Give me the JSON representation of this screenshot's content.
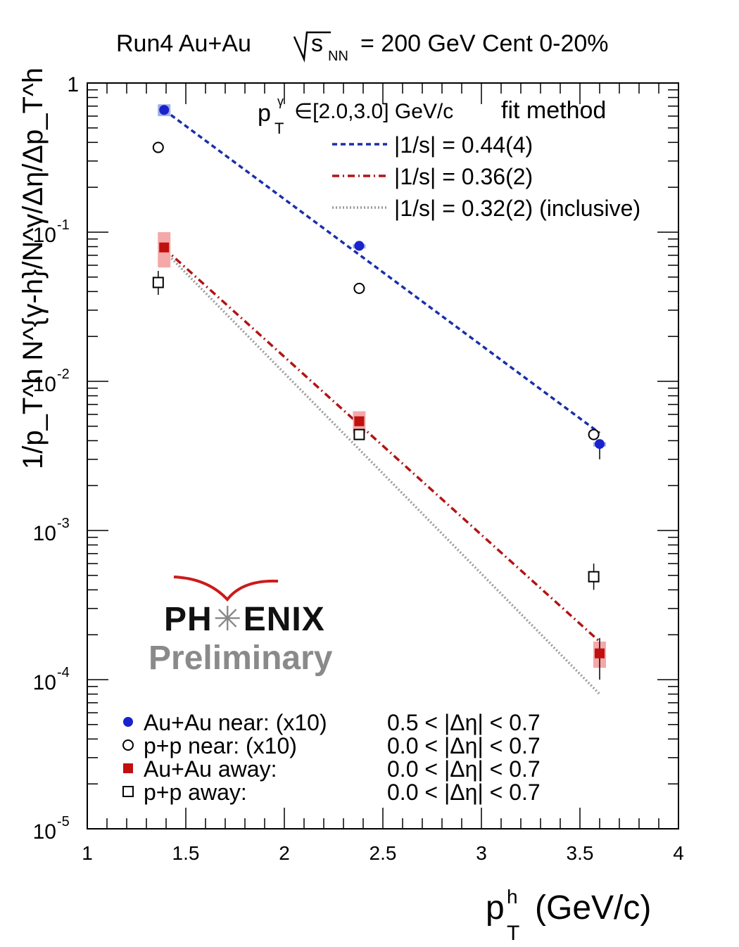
{
  "header": {
    "title_prefix": "Run4 Au+Au",
    "sqrt_s": "s",
    "sqrt_sub": "NN",
    "title_suffix": "= 200 GeV Cent 0-20%"
  },
  "logo": {
    "line1_a": "PH",
    "line1_sun": "✳",
    "line1_b": "ENIX",
    "line2": "Preliminary"
  },
  "chart_data": {
    "type": "scatter",
    "xlim": [
      1,
      4
    ],
    "ylim": [
      1e-05,
      1
    ],
    "yscale": "log",
    "xlabel": "p",
    "xlabel_sup": "h",
    "xlabel_sub": "T",
    "xlabel_unit": "(GeV/c)",
    "ylabel": "1/p_T^h N^{γ-h}/N^γ/Δη/Δp_T^h",
    "x_ticks": [
      1,
      1.5,
      2,
      2.5,
      3,
      3.5,
      4
    ],
    "x_tick_labels": [
      "1",
      "1.5",
      "2",
      "2.5",
      "3",
      "3.5",
      "4"
    ],
    "y_ticks": [
      1,
      0.1,
      0.01,
      0.001,
      0.0001,
      1e-05
    ],
    "y_tick_labels": [
      {
        "base": "1",
        "exp": ""
      },
      {
        "base": "10",
        "exp": "-1"
      },
      {
        "base": "10",
        "exp": "-2"
      },
      {
        "base": "10",
        "exp": "-3"
      },
      {
        "base": "10",
        "exp": "-4"
      },
      {
        "base": "10",
        "exp": "-5"
      }
    ],
    "annotation": {
      "label": "p",
      "sup": "γ",
      "sub": "T",
      "range": "∈[2.0,3.0] GeV/c",
      "method": "fit method"
    },
    "fits": [
      {
        "name": "|1/s| = 0.44(4)",
        "color": "#1a2fa8",
        "style": "dashed",
        "x": [
          1.39,
          3.6
        ],
        "y": [
          0.66,
          0.0045
        ]
      },
      {
        "name": "|1/s| = 0.36(2)",
        "color": "#b01515",
        "style": "dashdot",
        "x": [
          1.39,
          3.6
        ],
        "y": [
          0.078,
          0.00018
        ]
      },
      {
        "name": "|1/s| = 0.32(2) (inclusive)",
        "color": "#9a9a9a",
        "style": "dotted",
        "x": [
          1.39,
          3.6
        ],
        "y": [
          0.075,
          8e-05
        ]
      }
    ],
    "series": [
      {
        "name": "Au+Au near: (x10)",
        "cut": "0.5 < |Δη| < 0.7",
        "marker": "filled-circle",
        "color": "#1a22cc",
        "x": [
          1.39,
          2.38,
          3.6
        ],
        "y": [
          0.66,
          0.081,
          0.0038
        ],
        "sys_lo": [
          0.6,
          0.079,
          0.0037
        ],
        "sys_hi": [
          0.72,
          0.083,
          0.0039
        ],
        "err_lo": [
          0.66,
          0.081,
          0.003
        ],
        "err_hi": [
          0.66,
          0.081,
          0.0038
        ]
      },
      {
        "name": "p+p near: (x10)",
        "cut": "0.0 < |Δη| < 0.7",
        "marker": "open-circle",
        "color": "#000000",
        "x": [
          1.36,
          2.38,
          3.57
        ],
        "y": [
          0.37,
          0.042,
          0.0044
        ],
        "err_lo": [
          0.37,
          0.042,
          0.0044
        ],
        "err_hi": [
          0.37,
          0.042,
          0.0044
        ]
      },
      {
        "name": "Au+Au away:",
        "cut": "0.0 < |Δη| < 0.7",
        "marker": "filled-square",
        "color": "#c01010",
        "x": [
          1.39,
          2.38,
          3.6
        ],
        "y": [
          0.079,
          0.0054,
          0.00015
        ],
        "sys_lo": [
          0.058,
          0.0045,
          0.00012
        ],
        "sys_hi": [
          0.1,
          0.0063,
          0.00018
        ],
        "err_lo": [
          0.079,
          0.0054,
          0.0001
        ],
        "err_hi": [
          0.079,
          0.0054,
          0.00019
        ]
      },
      {
        "name": "p+p away:",
        "cut": "0.0 < |Δη| < 0.7",
        "marker": "open-square",
        "color": "#000000",
        "x": [
          1.36,
          2.38,
          3.57
        ],
        "y": [
          0.046,
          0.0044,
          0.00049
        ],
        "err_lo": [
          0.038,
          0.0044,
          0.0004
        ],
        "err_hi": [
          0.055,
          0.0044,
          0.0006
        ]
      }
    ]
  }
}
